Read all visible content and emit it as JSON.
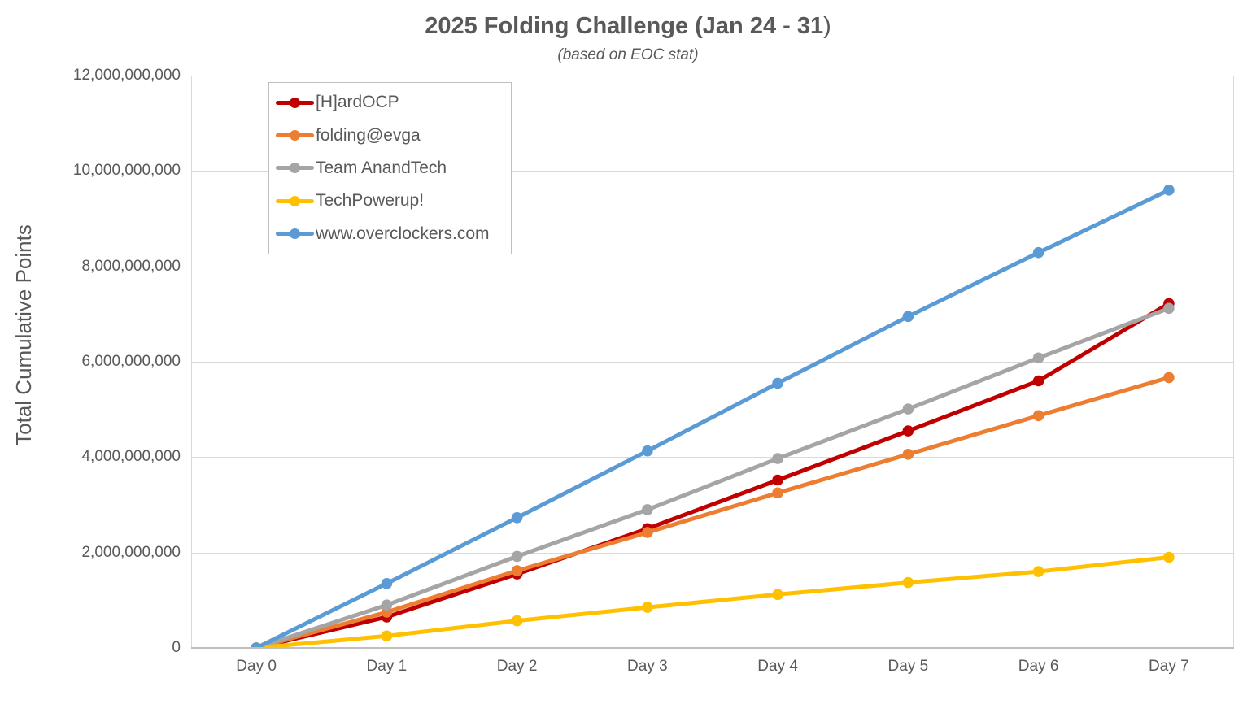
{
  "title": {
    "main": "2025 Folding Challenge (Jan 24 - 31",
    "paren": ")"
  },
  "subtitle": "(based on EOC stat)",
  "y_axis_title": "Total Cumulative Points",
  "colors": {
    "text": "#595959",
    "gridline": "#D9D9D9",
    "axis_line": "#BFBFBF",
    "legend_border": "#BFBFBF",
    "background": "#FFFFFF"
  },
  "chart_data": {
    "type": "line",
    "title": "2025 Folding Challenge (Jan 24 - 31)",
    "subtitle": "(based on EOC stat)",
    "xlabel": "",
    "ylabel": "Total Cumulative Points",
    "categories": [
      "Day 0",
      "Day 1",
      "Day 2",
      "Day 3",
      "Day 4",
      "Day 5",
      "Day 6",
      "Day 7"
    ],
    "ylim": [
      0,
      12000000000
    ],
    "ytick_step": 2000000000,
    "grid": "horizontal",
    "legend_position": "top-left-inside",
    "series": [
      {
        "name": "[H]ardOCP",
        "color": "#C00000",
        "values": [
          0,
          650000000,
          1550000000,
          2500000000,
          3520000000,
          4550000000,
          5600000000,
          7220000000
        ]
      },
      {
        "name": "folding@evga",
        "color": "#ED7D31",
        "values": [
          0,
          750000000,
          1620000000,
          2420000000,
          3250000000,
          4060000000,
          4870000000,
          5670000000
        ]
      },
      {
        "name": "Team AnandTech",
        "color": "#A5A5A5",
        "values": [
          0,
          900000000,
          1920000000,
          2900000000,
          3970000000,
          5010000000,
          6080000000,
          7120000000
        ]
      },
      {
        "name": "TechPowerup!",
        "color": "#FFC000",
        "values": [
          0,
          250000000,
          570000000,
          850000000,
          1120000000,
          1370000000,
          1600000000,
          1900000000
        ]
      },
      {
        "name": "www.overclockers.com",
        "color": "#5B9BD5",
        "values": [
          0,
          1350000000,
          2730000000,
          4130000000,
          5550000000,
          6950000000,
          8290000000,
          9600000000
        ]
      }
    ]
  }
}
